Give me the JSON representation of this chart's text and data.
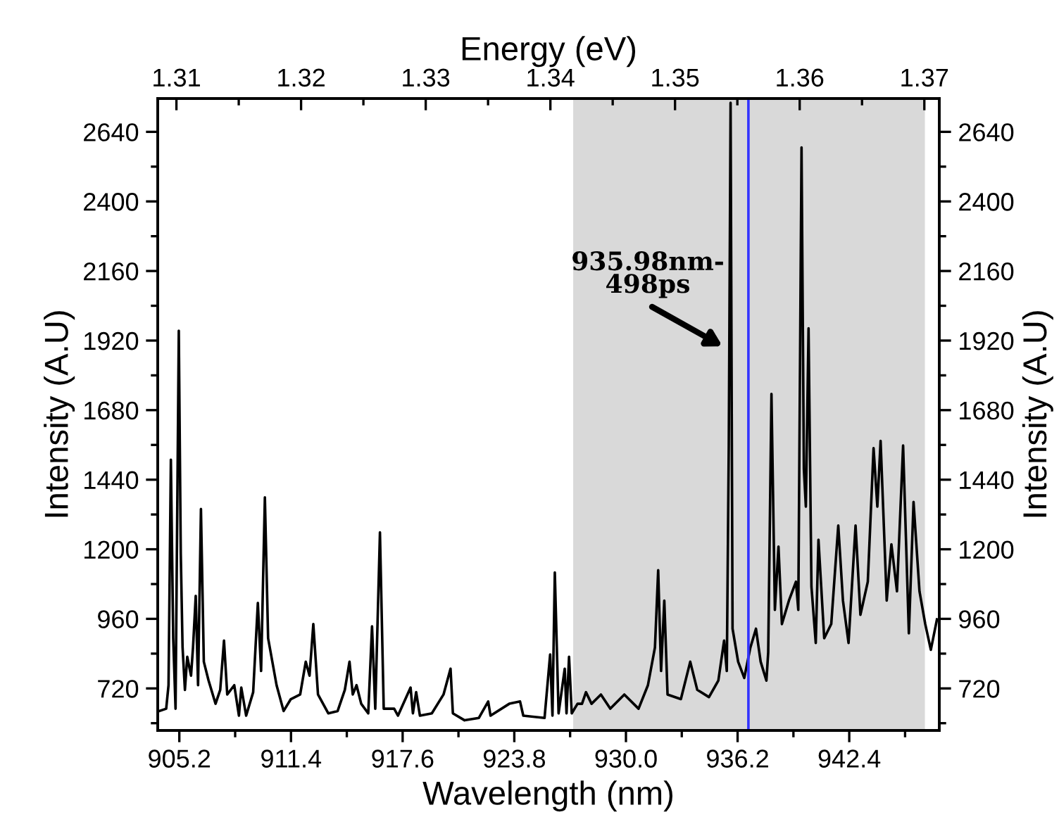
{
  "chart_data": {
    "type": "line",
    "xlabel": "Wavelength (nm)",
    "ylabel": "Intensity (A.U)",
    "y2label": "Intensity (A.U)",
    "x2label": "Energy (eV)",
    "xlim": [
      904.0,
      947.4
    ],
    "xticks": [
      {
        "value": 905.2,
        "label": "905.2"
      },
      {
        "value": 911.4,
        "label": "911.4"
      },
      {
        "value": 917.6,
        "label": "917.6"
      },
      {
        "value": 923.8,
        "label": "923.8"
      },
      {
        "value": 930.0,
        "label": "930.0"
      },
      {
        "value": 936.2,
        "label": "936.2"
      },
      {
        "value": 942.4,
        "label": "942.4"
      }
    ],
    "ylim": [
      575,
      2755
    ],
    "yticks": [
      720,
      960,
      1200,
      1440,
      1680,
      1920,
      2160,
      2400,
      2640
    ],
    "y2lim": [
      575,
      2755
    ],
    "y2ticks": [
      720,
      960,
      1200,
      1440,
      1680,
      1920,
      2160,
      2400,
      2640
    ],
    "x2lim": [
      1.3085,
      1.3712
    ],
    "x2ticks": [
      1.31,
      1.32,
      1.33,
      1.34,
      1.35,
      1.36,
      1.37
    ],
    "grid": false,
    "legend": false,
    "marker": "none",
    "line_style": "solid",
    "bands": [
      {
        "axis": "x",
        "from": 927.07,
        "to": 946.6,
        "color": "#d9d9d9"
      }
    ],
    "ref_lines": [
      {
        "axis": "x",
        "value": 936.8,
        "color": "#3333ff",
        "line_style": "solid"
      }
    ],
    "annotations": [
      "935.98nm-\n498ps"
    ],
    "series": [
      {
        "color": "#000000",
        "x": [
          904.08,
          904.47,
          904.6,
          904.73,
          904.86,
          904.99,
          905.17,
          905.28,
          905.38,
          905.51,
          905.64,
          905.85,
          905.96,
          906.11,
          906.24,
          906.4,
          906.56,
          906.82,
          907.21,
          907.47,
          907.68,
          907.86,
          908.25,
          908.51,
          908.64,
          908.91,
          909.3,
          909.56,
          909.74,
          909.95,
          910.13,
          910.6,
          910.99,
          911.39,
          911.91,
          912.22,
          912.43,
          912.64,
          912.9,
          913.47,
          913.99,
          914.39,
          914.65,
          914.83,
          915.04,
          915.3,
          915.69,
          915.9,
          916.08,
          916.34,
          916.55,
          917.13,
          917.34,
          918.04,
          918.17,
          918.35,
          918.56,
          919.22,
          919.87,
          920.26,
          920.39,
          921.04,
          921.83,
          922.35,
          922.48,
          923.52,
          924.12,
          924.3,
          925.48,
          925.79,
          925.92,
          926.05,
          926.26,
          926.6,
          926.7,
          926.84,
          926.99,
          927.31,
          927.56,
          927.78,
          928.09,
          928.61,
          929.13,
          929.91,
          930.7,
          931.22,
          931.61,
          931.79,
          931.95,
          932.13,
          932.31,
          933.05,
          933.57,
          933.96,
          934.61,
          935.13,
          935.45,
          935.6,
          935.71,
          935.81,
          935.92,
          936.23,
          936.57,
          936.91,
          937.22,
          937.48,
          937.8,
          937.9,
          938.08,
          938.27,
          938.47,
          938.66,
          939.05,
          939.44,
          939.57,
          939.75,
          939.88,
          939.99,
          940.14,
          940.3,
          940.54,
          940.69,
          941.01,
          941.4,
          941.79,
          942.05,
          942.36,
          942.75,
          943.02,
          943.43,
          943.75,
          943.96,
          944.14,
          944.48,
          944.74,
          945.05,
          945.39,
          945.71,
          945.97,
          946.3,
          946.62,
          946.93,
          947.27
        ],
        "values": [
          642,
          650,
          731,
          1509,
          893,
          650,
          1954,
          1185,
          861,
          715,
          829,
          764,
          861,
          1039,
          731,
          1339,
          812,
          748,
          667,
          715,
          885,
          699,
          731,
          626,
          723,
          626,
          707,
          1015,
          780,
          1379,
          893,
          731,
          642,
          683,
          699,
          812,
          764,
          942,
          699,
          634,
          642,
          715,
          812,
          699,
          731,
          667,
          634,
          934,
          650,
          1258,
          650,
          650,
          626,
          723,
          634,
          707,
          626,
          634,
          699,
          788,
          634,
          610,
          618,
          675,
          626,
          667,
          675,
          626,
          618,
          837,
          626,
          1120,
          634,
          788,
          634,
          829,
          634,
          667,
          667,
          707,
          667,
          699,
          650,
          699,
          650,
          731,
          861,
          1128,
          780,
          1023,
          699,
          683,
          812,
          715,
          690,
          747,
          885,
          780,
          1558,
          2740,
          926,
          812,
          756,
          861,
          926,
          812,
          747,
          845,
          1736,
          991,
          1209,
          942,
          1023,
          1088,
          991,
          2586,
          1477,
          1347,
          1962,
          1071,
          877,
          1233,
          893,
          942,
          1282,
          1023,
          877,
          1282,
          974,
          1088,
          1549,
          1347,
          1574,
          1023,
          1217,
          1055,
          1558,
          910,
          1363,
          1055,
          942,
          853,
          958
        ]
      }
    ]
  }
}
